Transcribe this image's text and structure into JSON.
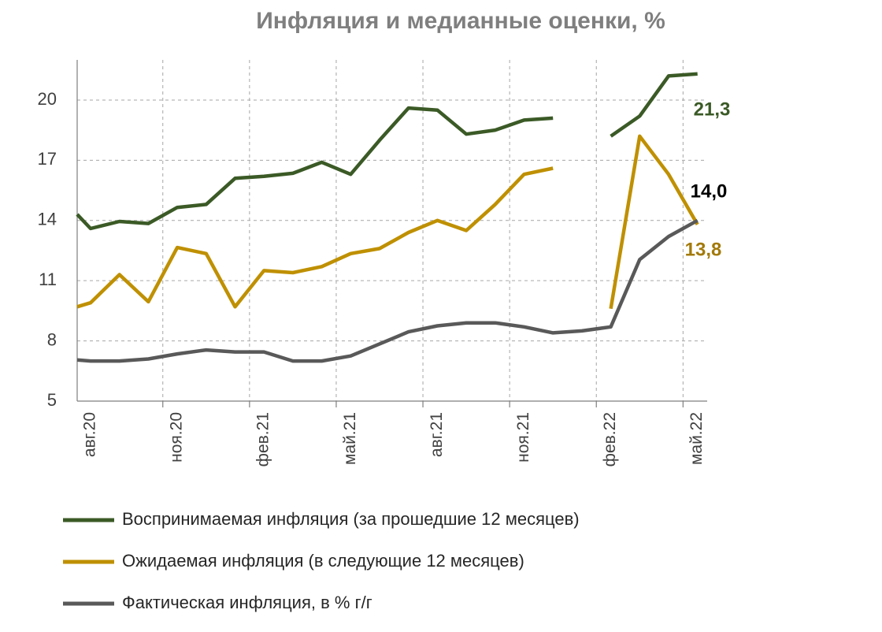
{
  "chart_data": {
    "type": "line",
    "title": "Инфляция и медианные оценки, %",
    "categories": [
      null,
      "авг.20",
      null,
      null,
      "ноя.20",
      null,
      null,
      "фев.21",
      null,
      null,
      "май.21",
      null,
      null,
      "авг.21",
      null,
      null,
      "ноя.21",
      null,
      null,
      "фев.22",
      null,
      null,
      "май.22"
    ],
    "ylim": [
      5,
      22
    ],
    "yticks": [
      5,
      8,
      11,
      14,
      17,
      20
    ],
    "grid": true,
    "series": [
      {
        "name": "Воспринимаемая инфляция (за прошедшие 12 месяцев)",
        "color": "#3b5a26",
        "label_color": "#3b5a26",
        "values": [
          14.3,
          13.6,
          13.95,
          13.85,
          14.65,
          14.8,
          16.1,
          16.2,
          16.35,
          16.9,
          16.3,
          18.0,
          19.6,
          19.5,
          18.3,
          18.5,
          19.0,
          19.1,
          null,
          18.2,
          19.2,
          21.2,
          21.3
        ],
        "value_labels": [
          null,
          null,
          null,
          null,
          null,
          null,
          null,
          null,
          null,
          null,
          null,
          null,
          null,
          null,
          null,
          null,
          null,
          null,
          null,
          null,
          null,
          null,
          "21,3"
        ]
      },
      {
        "name": "Ожидаемая инфляция (в следующие 12 месяцев)",
        "color": "#bf9000",
        "label_color": "#a37a0a",
        "values": [
          9.7,
          9.9,
          11.3,
          9.95,
          12.65,
          12.35,
          9.7,
          11.5,
          11.4,
          11.7,
          12.35,
          12.6,
          13.4,
          14.0,
          13.5,
          14.8,
          16.3,
          16.6,
          null,
          9.6,
          18.2,
          16.3,
          13.8
        ],
        "value_labels": [
          null,
          null,
          null,
          null,
          null,
          null,
          null,
          null,
          null,
          null,
          null,
          null,
          null,
          null,
          null,
          null,
          null,
          null,
          null,
          null,
          null,
          null,
          "13,8"
        ]
      },
      {
        "name": "Фактическая инфляция, в % г/г",
        "color": "#595959",
        "label_color": "#000000",
        "values": [
          7.05,
          7.0,
          7.0,
          7.1,
          7.35,
          7.55,
          7.45,
          7.45,
          7.0,
          7.0,
          7.25,
          7.85,
          8.45,
          8.75,
          8.9,
          8.9,
          8.7,
          8.4,
          8.5,
          8.7,
          12.05,
          13.2,
          14.0
        ],
        "value_labels": [
          null,
          null,
          null,
          null,
          null,
          null,
          null,
          null,
          null,
          null,
          null,
          null,
          null,
          null,
          null,
          null,
          null,
          null,
          null,
          null,
          null,
          null,
          "14,0"
        ]
      }
    ]
  }
}
